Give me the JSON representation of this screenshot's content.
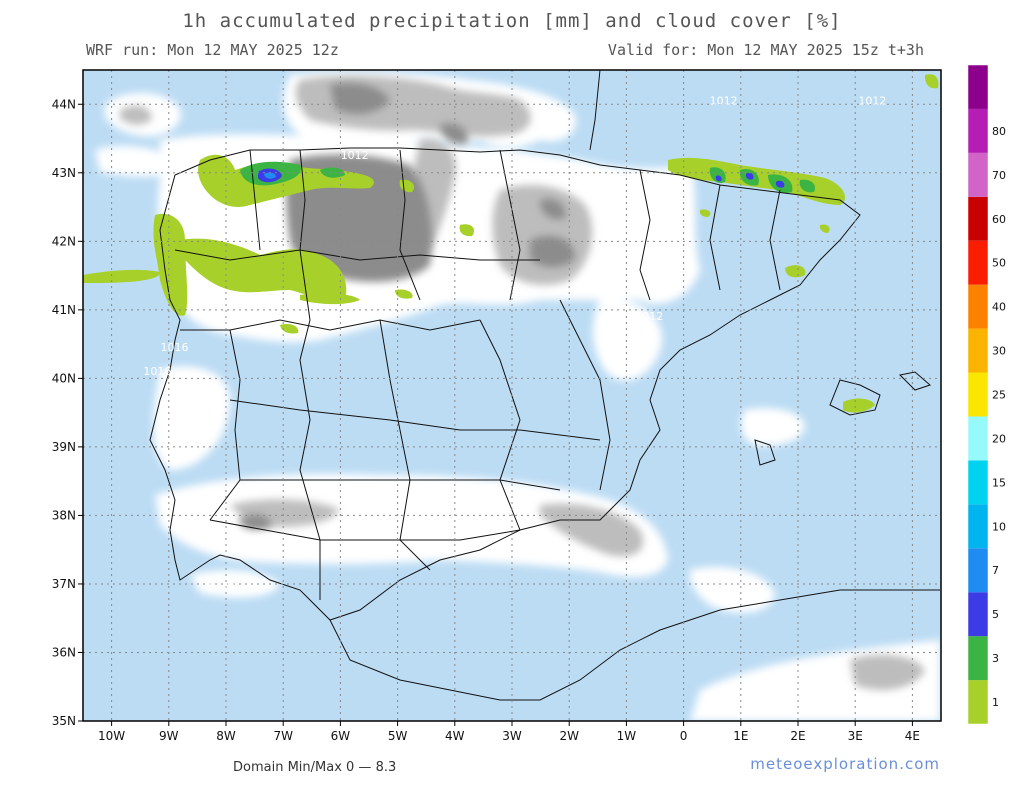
{
  "header": {
    "title": "1h accumulated precipitation [mm] and cloud cover [%]",
    "run": "WRF run: Mon 12 MAY 2025 12z",
    "valid": "Valid for: Mon 12 MAY 2025 15z  t+3h"
  },
  "footer": {
    "minmax": "Domain Min/Max 0 — 8.3",
    "site": "meteoexploration.com"
  },
  "map": {
    "extent": {
      "lon": [
        -10.5,
        4.5
      ],
      "lat": [
        35,
        44.5
      ]
    },
    "lat_ticks": [
      {
        "value": 35,
        "label": "35N"
      },
      {
        "value": 36,
        "label": "36N"
      },
      {
        "value": 37,
        "label": "37N"
      },
      {
        "value": 38,
        "label": "38N"
      },
      {
        "value": 39,
        "label": "39N"
      },
      {
        "value": 40,
        "label": "40N"
      },
      {
        "value": 41,
        "label": "41N"
      },
      {
        "value": 42,
        "label": "42N"
      },
      {
        "value": 43,
        "label": "43N"
      },
      {
        "value": 44,
        "label": "44N"
      }
    ],
    "lon_ticks": [
      {
        "value": -10,
        "label": "10W"
      },
      {
        "value": -9,
        "label": "9W"
      },
      {
        "value": -8,
        "label": "8W"
      },
      {
        "value": -7,
        "label": "7W"
      },
      {
        "value": -6,
        "label": "6W"
      },
      {
        "value": -5,
        "label": "5W"
      },
      {
        "value": -4,
        "label": "4W"
      },
      {
        "value": -3,
        "label": "3W"
      },
      {
        "value": -2,
        "label": "2W"
      },
      {
        "value": -1,
        "label": "1W"
      },
      {
        "value": 0,
        "label": "0"
      },
      {
        "value": 1,
        "label": "1E"
      },
      {
        "value": 2,
        "label": "2E"
      },
      {
        "value": 3,
        "label": "3E"
      },
      {
        "value": 4,
        "label": "4E"
      }
    ],
    "isobar_labels": [
      {
        "text": "1012",
        "lon": -5.75,
        "lat": 43.2
      },
      {
        "text": "1016",
        "lon": -8.9,
        "lat": 40.4
      },
      {
        "text": "1016",
        "lon": -9.2,
        "lat": 40.05
      },
      {
        "text": "1016",
        "lon": -8.1,
        "lat": 36.95
      },
      {
        "text": "1012",
        "lon": 0.7,
        "lat": 44.0
      },
      {
        "text": "1012",
        "lon": -0.6,
        "lat": 40.85
      },
      {
        "text": "1012",
        "lon": 3.3,
        "lat": 44.0
      }
    ],
    "colors": {
      "ocean": "#bcdcf4",
      "cloud_white": "#ffffff",
      "cloud_gray": "#bdbdbd",
      "cloud_dark": "#8c8c8c",
      "border": "#111111",
      "grid": "#888888"
    }
  },
  "colorbar": {
    "levels": [
      {
        "label": "1",
        "color": "#a8d02a"
      },
      {
        "label": "3",
        "color": "#3cb444"
      },
      {
        "label": "5",
        "color": "#3c3ce6"
      },
      {
        "label": "7",
        "color": "#1e8cf0"
      },
      {
        "label": "10",
        "color": "#00b4f0"
      },
      {
        "label": "15",
        "color": "#00d2f0"
      },
      {
        "label": "20",
        "color": "#96fafa"
      },
      {
        "label": "25",
        "color": "#fae600"
      },
      {
        "label": "30",
        "color": "#fab400"
      },
      {
        "label": "40",
        "color": "#fa8200"
      },
      {
        "label": "50",
        "color": "#fa1e00"
      },
      {
        "label": "60",
        "color": "#c80000"
      },
      {
        "label": "70",
        "color": "#d264c8"
      },
      {
        "label": "80",
        "color": "#b41eb4"
      },
      {
        "label": "",
        "color": "#8c008c"
      }
    ]
  }
}
